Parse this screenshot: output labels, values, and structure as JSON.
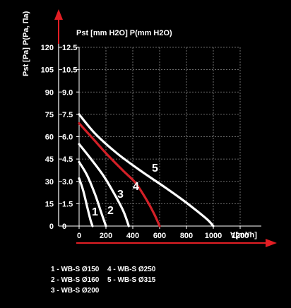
{
  "chart_data": {
    "type": "line",
    "title": "",
    "xlabel": "V[m³/h]",
    "ylabel_outer": "Pst [Pa] P(Pa, Па)",
    "ylabel_inner": "Pst [mm H2O] P(mm H2O)",
    "xlim": [
      0,
      1200
    ],
    "ylim": [
      0,
      120
    ],
    "ylim_inner": [
      0,
      12.5
    ],
    "x_ticks": [
      "0",
      "200",
      "400",
      "600",
      "800",
      "1000",
      "1200"
    ],
    "y_ticks_outer": [
      "0",
      "15",
      "30",
      "45",
      "60",
      "75",
      "90",
      "105",
      "120"
    ],
    "y_ticks_inner": [
      "0",
      "1.5",
      "3.0",
      "4.5",
      "6.0",
      "7.5",
      "9.0",
      "10.5",
      "12.5"
    ],
    "grid": true,
    "series": [
      {
        "name": "1",
        "color": "#ffffff",
        "points": [
          [
            0,
            32
          ],
          [
            30,
            24
          ],
          [
            60,
            13
          ],
          [
            85,
            4
          ],
          [
            100,
            0
          ]
        ]
      },
      {
        "name": "2",
        "color": "#ffffff",
        "points": [
          [
            0,
            43
          ],
          [
            60,
            34
          ],
          [
            120,
            21
          ],
          [
            165,
            9
          ],
          [
            200,
            0
          ]
        ]
      },
      {
        "name": "3",
        "color": "#ffffff",
        "points": [
          [
            0,
            55
          ],
          [
            80,
            46
          ],
          [
            180,
            34
          ],
          [
            260,
            22
          ],
          [
            330,
            10
          ],
          [
            370,
            0
          ]
        ]
      },
      {
        "name": "4",
        "color": "#d32027",
        "points": [
          [
            0,
            69
          ],
          [
            100,
            59
          ],
          [
            220,
            47
          ],
          [
            330,
            37
          ],
          [
            420,
            29
          ],
          [
            500,
            18
          ],
          [
            560,
            8
          ],
          [
            600,
            0
          ]
        ]
      },
      {
        "name": "5",
        "color": "#ffffff",
        "points": [
          [
            0,
            75
          ],
          [
            120,
            62
          ],
          [
            280,
            49
          ],
          [
            460,
            37
          ],
          [
            640,
            26
          ],
          [
            780,
            17
          ],
          [
            880,
            10
          ],
          [
            960,
            4
          ],
          [
            1000,
            0
          ]
        ]
      }
    ],
    "legend": [
      {
        "key": "1",
        "label": "1 - WB-S Ø150"
      },
      {
        "key": "2",
        "label": "2 - WB-S Ø160"
      },
      {
        "key": "3",
        "label": "3 - WB-S Ø200"
      },
      {
        "key": "4",
        "label": "4 - WB-S Ø250"
      },
      {
        "key": "5",
        "label": "5 - WB-S Ø315"
      }
    ],
    "legend_placement": "bottom-left"
  }
}
